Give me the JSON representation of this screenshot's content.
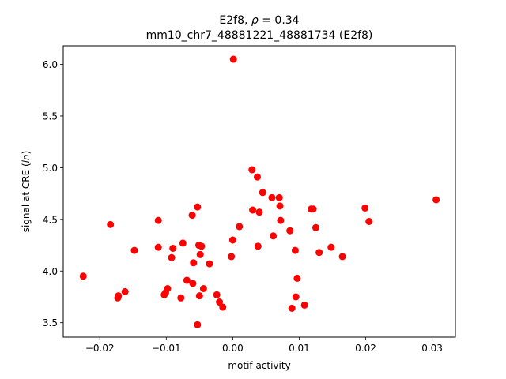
{
  "chart_data": {
    "type": "scatter",
    "title_line1_prefix": "E2f8, ",
    "title_rho_symbol": "ρ",
    "title_rho_value": " = 0.34",
    "title_line2": "mm10_chr7_48881221_48881734 (E2f8)",
    "xlabel": "motif activity",
    "ylabel_prefix": "signal at CRE (",
    "ylabel_italic": "ln",
    "ylabel_suffix": ")",
    "xlim": [
      -0.0255,
      0.0335
    ],
    "ylim": [
      3.36,
      6.18
    ],
    "xticks": [
      -0.02,
      -0.01,
      0.0,
      0.01,
      0.02,
      0.03
    ],
    "xtick_labels": [
      "−0.02",
      "−0.01",
      "0.00",
      "0.01",
      "0.02",
      "0.03"
    ],
    "yticks": [
      3.5,
      4.0,
      4.5,
      5.0,
      5.5,
      6.0
    ],
    "ytick_labels": [
      "3.5",
      "4.0",
      "4.5",
      "5.0",
      "5.5",
      "6.0"
    ],
    "point_color": "#ff0000",
    "points": [
      {
        "x": -0.0225,
        "y": 3.95
      },
      {
        "x": -0.0184,
        "y": 4.45
      },
      {
        "x": -0.0173,
        "y": 3.74
      },
      {
        "x": -0.0172,
        "y": 3.76
      },
      {
        "x": -0.0162,
        "y": 3.8
      },
      {
        "x": -0.0148,
        "y": 4.2
      },
      {
        "x": -0.0112,
        "y": 4.49
      },
      {
        "x": -0.0112,
        "y": 4.23
      },
      {
        "x": -0.0103,
        "y": 3.77
      },
      {
        "x": -0.0101,
        "y": 3.79
      },
      {
        "x": -0.0098,
        "y": 3.83
      },
      {
        "x": -0.0092,
        "y": 4.13
      },
      {
        "x": -0.009,
        "y": 4.22
      },
      {
        "x": -0.0078,
        "y": 3.74
      },
      {
        "x": -0.0075,
        "y": 4.27
      },
      {
        "x": -0.0069,
        "y": 3.91
      },
      {
        "x": -0.0061,
        "y": 4.54
      },
      {
        "x": -0.006,
        "y": 3.88
      },
      {
        "x": -0.0059,
        "y": 4.08
      },
      {
        "x": -0.0053,
        "y": 4.62
      },
      {
        "x": -0.0053,
        "y": 3.48
      },
      {
        "x": -0.0051,
        "y": 4.25
      },
      {
        "x": -0.005,
        "y": 3.76
      },
      {
        "x": -0.0049,
        "y": 4.16
      },
      {
        "x": -0.0047,
        "y": 4.24
      },
      {
        "x": -0.0044,
        "y": 3.83
      },
      {
        "x": -0.0035,
        "y": 4.07
      },
      {
        "x": -0.0024,
        "y": 3.77
      },
      {
        "x": -0.002,
        "y": 3.7
      },
      {
        "x": -0.0015,
        "y": 3.65
      },
      {
        "x": -0.0002,
        "y": 4.14
      },
      {
        "x": 0.0,
        "y": 4.3
      },
      {
        "x": 0.0001,
        "y": 6.05
      },
      {
        "x": 0.001,
        "y": 4.43
      },
      {
        "x": 0.0029,
        "y": 4.98
      },
      {
        "x": 0.003,
        "y": 4.59
      },
      {
        "x": 0.0037,
        "y": 4.91
      },
      {
        "x": 0.0038,
        "y": 4.24
      },
      {
        "x": 0.004,
        "y": 4.57
      },
      {
        "x": 0.0045,
        "y": 4.76
      },
      {
        "x": 0.0059,
        "y": 4.71
      },
      {
        "x": 0.0061,
        "y": 4.34
      },
      {
        "x": 0.007,
        "y": 4.71
      },
      {
        "x": 0.0071,
        "y": 4.63
      },
      {
        "x": 0.0072,
        "y": 4.49
      },
      {
        "x": 0.0086,
        "y": 4.39
      },
      {
        "x": 0.0089,
        "y": 3.64
      },
      {
        "x": 0.0094,
        "y": 4.2
      },
      {
        "x": 0.0095,
        "y": 3.75
      },
      {
        "x": 0.0097,
        "y": 3.93
      },
      {
        "x": 0.0108,
        "y": 3.67
      },
      {
        "x": 0.0118,
        "y": 4.6
      },
      {
        "x": 0.0121,
        "y": 4.6
      },
      {
        "x": 0.0125,
        "y": 4.42
      },
      {
        "x": 0.013,
        "y": 4.18
      },
      {
        "x": 0.0148,
        "y": 4.23
      },
      {
        "x": 0.0165,
        "y": 4.14
      },
      {
        "x": 0.0199,
        "y": 4.61
      },
      {
        "x": 0.0205,
        "y": 4.48
      },
      {
        "x": 0.0306,
        "y": 4.69
      }
    ]
  }
}
